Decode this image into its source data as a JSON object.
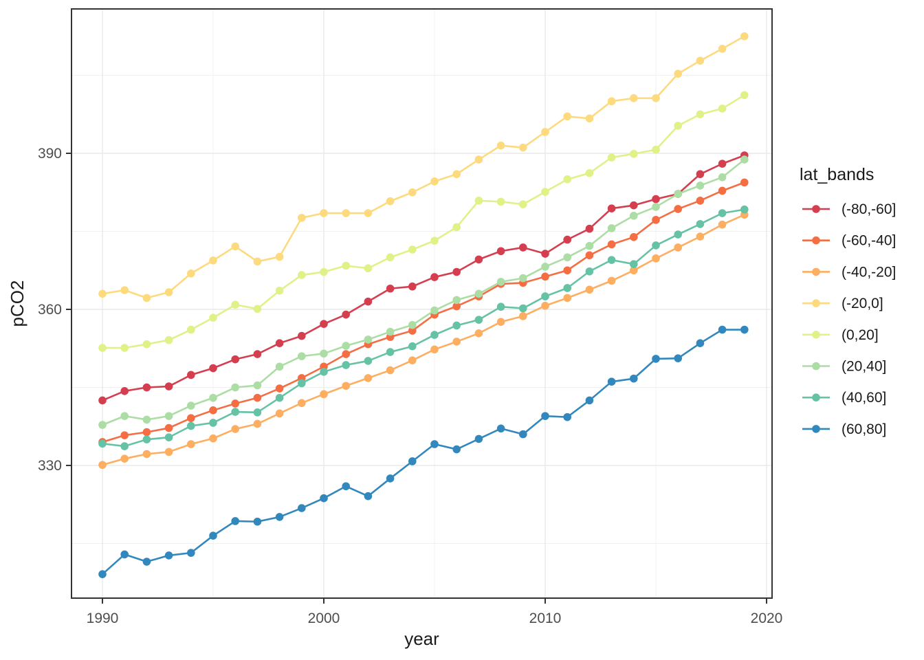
{
  "chart_data": {
    "type": "line",
    "title": "",
    "xlabel": "year",
    "ylabel": "pCO2",
    "legend_title": "lat_bands",
    "legend_position": "right",
    "grid": "major+minor",
    "background": "#ffffff",
    "panel_border_color": "#333333",
    "major_grid_color": "#e8e8e8",
    "minor_grid_color": "#f0f0f0",
    "tick_color": "#333333",
    "xlim": [
      1988.6,
      2020.3
    ],
    "ylim": [
      304.5,
      417.9
    ],
    "xticks": [
      1990,
      2000,
      2010,
      2020
    ],
    "xticks_minor": [
      1995,
      2005,
      2015
    ],
    "yticks": [
      330,
      360,
      390
    ],
    "yticks_minor": [
      315,
      345,
      375,
      405
    ],
    "x": [
      1990,
      1991,
      1992,
      1993,
      1994,
      1995,
      1996,
      1997,
      1998,
      1999,
      2000,
      2001,
      2002,
      2003,
      2004,
      2005,
      2006,
      2007,
      2008,
      2009,
      2010,
      2011,
      2012,
      2013,
      2014,
      2015,
      2016,
      2017,
      2018,
      2019
    ],
    "series": [
      {
        "name": "(-80,-60]",
        "color": "#d53e4f",
        "values": [
          342.5,
          344.3,
          345.0,
          345.2,
          347.4,
          348.7,
          350.4,
          351.4,
          353.5,
          354.9,
          357.2,
          359.0,
          361.5,
          364.0,
          364.4,
          366.2,
          367.2,
          369.6,
          371.2,
          371.9,
          370.7,
          373.4,
          375.5,
          379.4,
          380.0,
          381.2,
          382.2,
          386.0,
          388.0,
          389.6
        ]
      },
      {
        "name": "(-60,-40]",
        "color": "#f46d43",
        "values": [
          334.5,
          335.8,
          336.4,
          337.2,
          339.1,
          340.6,
          341.9,
          343.0,
          344.8,
          346.8,
          349.0,
          351.4,
          353.3,
          354.7,
          355.9,
          359.0,
          360.6,
          362.5,
          364.9,
          365.1,
          366.3,
          367.5,
          370.4,
          372.5,
          373.9,
          377.2,
          379.3,
          380.9,
          382.8,
          384.4
        ]
      },
      {
        "name": "(-40,-20]",
        "color": "#fdae61",
        "values": [
          330.1,
          331.3,
          332.2,
          332.6,
          334.1,
          335.2,
          337.0,
          338.0,
          340.0,
          342.0,
          343.7,
          345.3,
          346.8,
          348.3,
          350.2,
          352.3,
          353.8,
          355.4,
          357.6,
          358.7,
          360.7,
          362.2,
          363.8,
          365.5,
          367.5,
          369.8,
          371.9,
          374.0,
          376.3,
          378.2
        ]
      },
      {
        "name": "(-20,0]",
        "color": "#fdda7e",
        "values": [
          363.0,
          363.7,
          362.2,
          363.3,
          366.9,
          369.4,
          372.1,
          369.2,
          370.1,
          377.6,
          378.5,
          378.5,
          378.5,
          380.8,
          382.5,
          384.6,
          386.0,
          388.8,
          391.5,
          391.1,
          394.1,
          397.1,
          396.7,
          400.0,
          400.6,
          400.6,
          405.3,
          407.8,
          410.1,
          412.5
        ]
      },
      {
        "name": "(0,20]",
        "color": "#e0f188",
        "values": [
          352.6,
          352.6,
          353.3,
          354.1,
          356.1,
          358.4,
          360.9,
          360.1,
          363.6,
          366.6,
          367.2,
          368.4,
          367.9,
          370.0,
          371.5,
          373.2,
          375.8,
          380.9,
          380.7,
          380.2,
          382.6,
          385.0,
          386.2,
          389.2,
          389.9,
          390.7,
          395.3,
          397.5,
          398.6,
          401.2
        ]
      },
      {
        "name": "(20,40]",
        "color": "#abdda4",
        "values": [
          337.8,
          339.5,
          338.8,
          339.5,
          341.5,
          343.0,
          345.0,
          345.4,
          349.0,
          351.0,
          351.5,
          353.0,
          354.2,
          355.7,
          357.0,
          359.8,
          361.8,
          363.0,
          365.3,
          366.0,
          368.2,
          370.0,
          372.2,
          375.6,
          378.0,
          379.7,
          382.2,
          383.8,
          385.4,
          388.8
        ]
      },
      {
        "name": "(40,60]",
        "color": "#66c2a5",
        "values": [
          334.2,
          333.7,
          335.0,
          335.4,
          337.6,
          338.2,
          340.3,
          340.2,
          343.0,
          345.8,
          348.0,
          349.3,
          350.1,
          351.8,
          352.9,
          355.1,
          356.9,
          358.0,
          360.5,
          360.2,
          362.5,
          364.1,
          367.3,
          369.5,
          368.7,
          372.3,
          374.4,
          376.4,
          378.5,
          379.2
        ]
      },
      {
        "name": "(60,80]",
        "color": "#3288bd",
        "values": [
          309.1,
          312.9,
          311.5,
          312.7,
          313.2,
          316.5,
          319.3,
          319.2,
          320.1,
          321.8,
          323.7,
          326.0,
          324.1,
          327.5,
          330.8,
          334.1,
          333.1,
          335.1,
          337.1,
          336.0,
          339.5,
          339.3,
          342.5,
          346.1,
          346.7,
          350.5,
          350.6,
          353.5,
          356.1,
          356.1
        ]
      }
    ]
  }
}
